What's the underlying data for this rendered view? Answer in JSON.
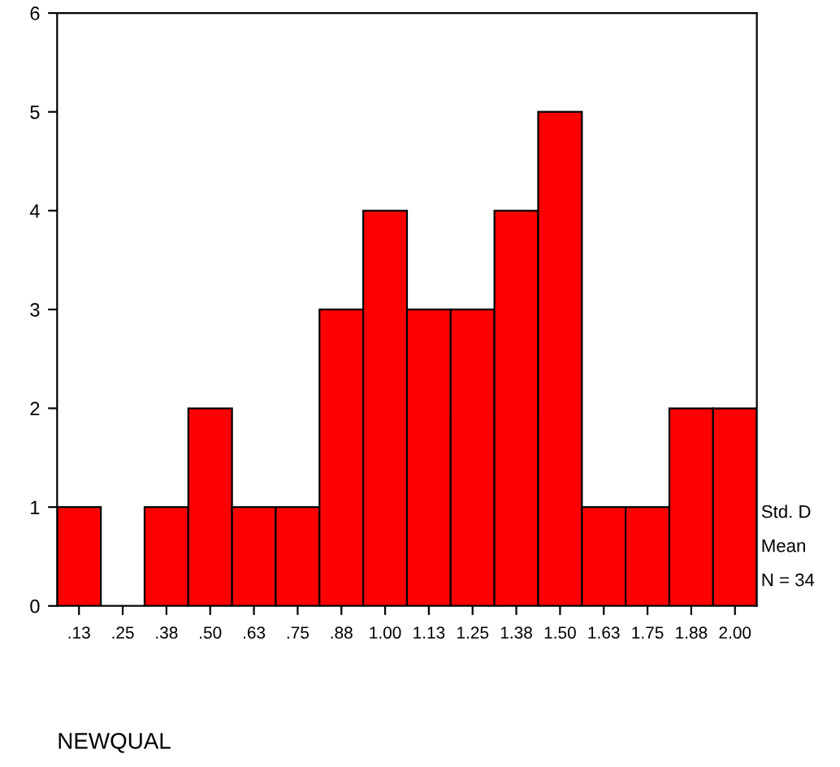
{
  "chart_data": {
    "type": "histogram",
    "bins": [
      0.0625,
      0.1875,
      0.3125,
      0.4375,
      0.5625,
      0.6875,
      0.8125,
      0.9375,
      1.0625,
      1.1875,
      1.3125,
      1.4375,
      1.5625,
      1.6875,
      1.8125,
      1.9375,
      2.0625
    ],
    "values": [
      1,
      0,
      1,
      2,
      1,
      1,
      3,
      4,
      3,
      3,
      4,
      5,
      1,
      1,
      2,
      2
    ],
    "color": "#ff0000",
    "xlabel": "NEWQUAL",
    "xlim": [
      0.0625,
      2.0625
    ],
    "xticks": [
      {
        "value": 0.125,
        "label": ".13"
      },
      {
        "value": 0.25,
        "label": ".25"
      },
      {
        "value": 0.375,
        "label": ".38"
      },
      {
        "value": 0.5,
        "label": ".50"
      },
      {
        "value": 0.625,
        "label": ".63"
      },
      {
        "value": 0.75,
        "label": ".75"
      },
      {
        "value": 0.875,
        "label": ".88"
      },
      {
        "value": 1.0,
        "label": "1.00"
      },
      {
        "value": 1.125,
        "label": "1.13"
      },
      {
        "value": 1.25,
        "label": "1.25"
      },
      {
        "value": 1.375,
        "label": "1.38"
      },
      {
        "value": 1.5,
        "label": "1.50"
      },
      {
        "value": 1.625,
        "label": "1.63"
      },
      {
        "value": 1.75,
        "label": "1.75"
      },
      {
        "value": 1.875,
        "label": "1.88"
      },
      {
        "value": 2.0,
        "label": "2.00"
      }
    ],
    "ylim": [
      0,
      6
    ],
    "yticks": [
      0,
      1,
      2,
      3,
      4,
      5,
      6
    ],
    "annotations": [
      "Std. D",
      "Mean",
      "N = 34"
    ]
  }
}
